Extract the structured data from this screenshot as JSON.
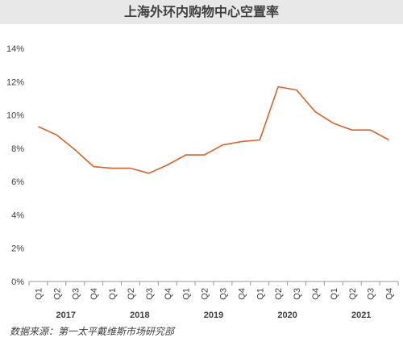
{
  "chart_data": {
    "type": "line",
    "title": "上海外环内购物中心空置率",
    "source": "数据来源：第一太平戴维斯市场研究部",
    "categories": [
      "Q1",
      "Q2",
      "Q3",
      "Q4",
      "Q1",
      "Q2",
      "Q3",
      "Q4",
      "Q1",
      "Q2",
      "Q3",
      "Q4",
      "Q1",
      "Q2",
      "Q3",
      "Q4",
      "Q1",
      "Q2",
      "Q3",
      "Q4"
    ],
    "years": [
      "2017",
      "2018",
      "2019",
      "2020",
      "2021"
    ],
    "series": [
      {
        "values": [
          9.3,
          8.8,
          7.9,
          6.9,
          6.8,
          6.8,
          6.5,
          7.0,
          7.6,
          7.6,
          8.2,
          8.4,
          8.5,
          11.7,
          11.5,
          10.2,
          9.5,
          9.1,
          9.1,
          8.5
        ]
      }
    ],
    "yticks": [
      "0%",
      "2%",
      "4%",
      "6%",
      "8%",
      "10%",
      "12%",
      "14%"
    ],
    "ylim": [
      0,
      14
    ],
    "grid": false,
    "line_color": "#d9622b"
  }
}
